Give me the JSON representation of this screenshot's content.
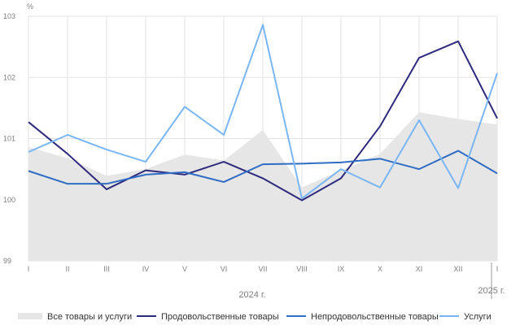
{
  "chart_data": {
    "type": "line",
    "unit": "%",
    "categories": [
      "I",
      "II",
      "III",
      "IV",
      "V",
      "VI",
      "VII",
      "VIII",
      "IX",
      "X",
      "XI",
      "XII",
      "I"
    ],
    "year_labels": [
      {
        "label": "2024 г.",
        "from": 0,
        "to": 11
      },
      {
        "label": "2025 г.",
        "from": 12,
        "to": 12
      }
    ],
    "ylim": [
      99,
      103
    ],
    "yticks": [
      99,
      100,
      101,
      102,
      103
    ],
    "grid": true,
    "legend_position": "bottom",
    "series": [
      {
        "name": "Все товары и услуги",
        "type": "area",
        "color": "#e6e6e6",
        "values": [
          100.86,
          100.68,
          100.39,
          100.5,
          100.74,
          100.64,
          101.14,
          100.2,
          100.48,
          100.75,
          101.43,
          101.32,
          101.23
        ]
      },
      {
        "name": "Продовольственные товары",
        "type": "line",
        "color": "#2e2a7e",
        "values": [
          101.27,
          100.75,
          100.17,
          100.48,
          100.41,
          100.62,
          100.35,
          99.99,
          100.35,
          101.2,
          102.32,
          102.59,
          101.33
        ]
      },
      {
        "name": "Непродовольственные товары",
        "type": "line",
        "color": "#2f6cc4",
        "values": [
          100.47,
          100.26,
          100.26,
          100.41,
          100.45,
          100.29,
          100.58,
          100.59,
          100.61,
          100.67,
          100.5,
          100.8,
          100.43
        ]
      },
      {
        "name": "Услуги",
        "type": "line",
        "color": "#7ab6f5",
        "values": [
          100.78,
          101.06,
          100.82,
          100.62,
          101.52,
          101.06,
          102.86,
          100.02,
          100.5,
          100.2,
          101.3,
          100.19,
          102.07
        ]
      }
    ]
  }
}
